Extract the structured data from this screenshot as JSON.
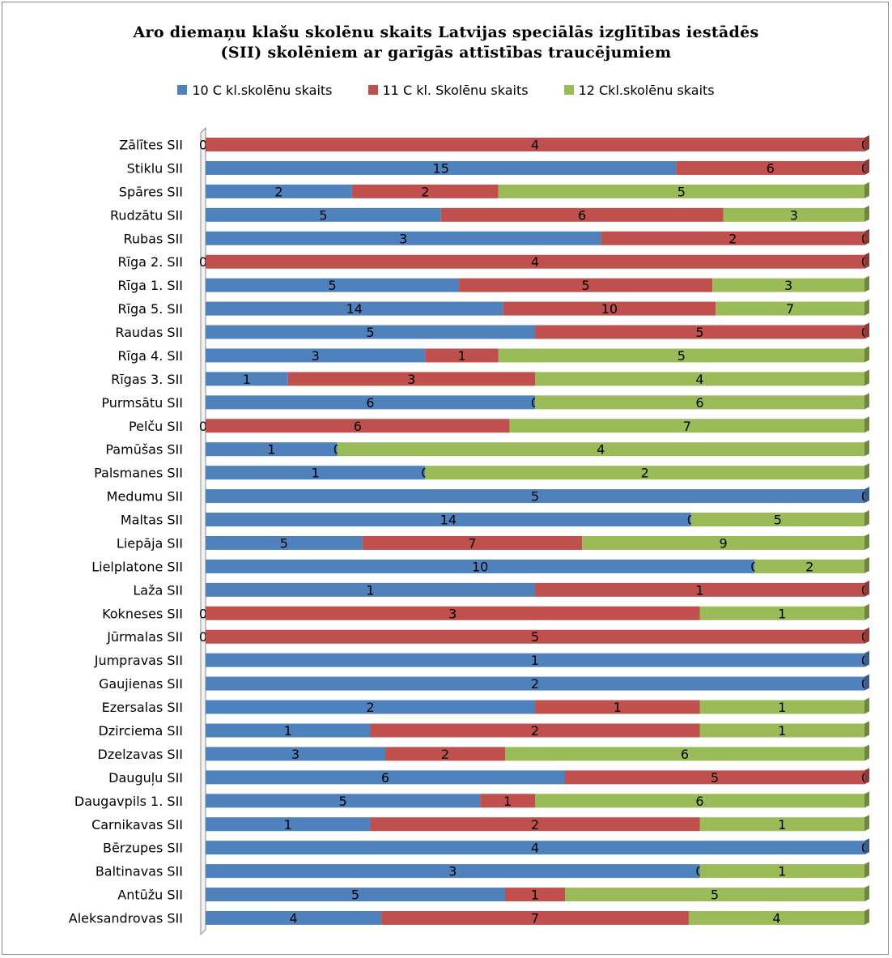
{
  "chart_data": {
    "type": "bar",
    "orientation": "horizontal",
    "stacked": "percent",
    "title_lines": [
      "Aro diemaņu klašu skolēnu skaits Latvijas speciālās izglītības iestādēs",
      "(SII) skolēniem ar garīgās attīstības traucējumiem"
    ],
    "legend_position": "top",
    "grid": false,
    "categories": [
      "Zālītes SII",
      "Stiklu SII",
      "Spāres SII",
      "Rudzātu SII",
      "Rubas SII",
      "Rīga 2. SII",
      "Rīga 1. SII",
      "Rīga 5. SII",
      "Raudas SII",
      "Rīga 4. SII",
      "Rīgas 3. SII",
      "Purmsātu SII",
      "Pelču SII",
      "Pamūšas SII",
      "Palsmanes SII",
      "Medumu SII",
      "Maltas SII",
      "Liepāja SII",
      "Lielplatone SII",
      "Laža SII",
      "Kokneses SII",
      "Jūrmalas SII",
      "Jumpravas SII",
      "Gaujienas SII",
      "Ezersalas SII",
      "Dzirciema SII",
      "Dzelzavas SII",
      "Dauguļu SII",
      "Daugavpils 1. SII",
      "Carnikavas SII",
      "Bērzupes SII",
      "Baltinavas SII",
      "Antūžu SII",
      "Aleksandrovas SII"
    ],
    "series": [
      {
        "name": "10 C kl.skolēnu skaits",
        "color": "#4f81bd",
        "values": [
          0,
          15,
          2,
          5,
          3,
          0,
          5,
          14,
          5,
          3,
          1,
          6,
          0,
          1,
          1,
          5,
          14,
          5,
          10,
          1,
          0,
          0,
          1,
          2,
          2,
          1,
          3,
          6,
          5,
          1,
          4,
          3,
          5,
          4
        ]
      },
      {
        "name": "11 C kl. Skolēnu skaits",
        "color": "#c0504d",
        "values": [
          4,
          6,
          2,
          6,
          2,
          4,
          5,
          10,
          5,
          1,
          3,
          0,
          6,
          0,
          0,
          0,
          0,
          7,
          0,
          1,
          3,
          5,
          0,
          0,
          1,
          2,
          2,
          5,
          1,
          2,
          0,
          0,
          1,
          7
        ]
      },
      {
        "name": "12 Ckl.skolēnu skaits",
        "color": "#9bbb59",
        "values": [
          0,
          0,
          5,
          3,
          0,
          0,
          3,
          7,
          0,
          5,
          4,
          6,
          7,
          4,
          2,
          0,
          5,
          9,
          2,
          0,
          1,
          0,
          0,
          0,
          1,
          1,
          6,
          0,
          6,
          1,
          0,
          1,
          5,
          4
        ]
      }
    ]
  }
}
